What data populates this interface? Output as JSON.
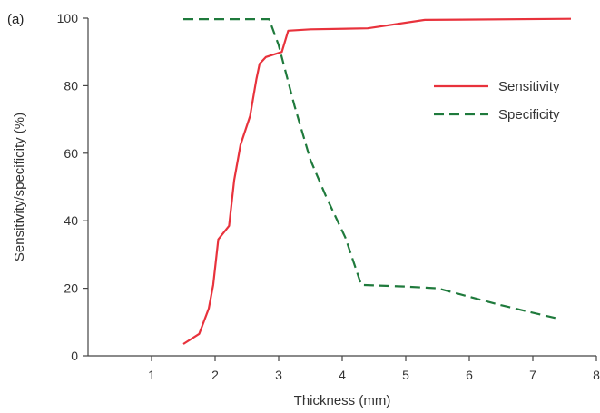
{
  "chart_data": {
    "type": "line",
    "panel_label": "(a)",
    "title": "",
    "xlabel": "Thickness (mm)",
    "ylabel": "Sensitivity/specificity (%)",
    "xlim": [
      0,
      8
    ],
    "ylim": [
      0,
      100
    ],
    "x_ticks": [
      1,
      2,
      3,
      4,
      5,
      6,
      7,
      8
    ],
    "y_ticks": [
      0,
      20,
      40,
      60,
      80,
      100
    ],
    "grid": false,
    "legend_position": "top-right",
    "series": [
      {
        "name": "Sensitivity",
        "color": "#e8323c",
        "line_style": "solid",
        "points": [
          [
            1.5,
            3.5
          ],
          [
            1.75,
            6.5
          ],
          [
            1.9,
            14
          ],
          [
            1.97,
            21
          ],
          [
            2.05,
            34.5
          ],
          [
            2.22,
            38.5
          ],
          [
            2.3,
            52
          ],
          [
            2.4,
            62.5
          ],
          [
            2.55,
            71
          ],
          [
            2.65,
            82
          ],
          [
            2.7,
            86.5
          ],
          [
            2.8,
            88.5
          ],
          [
            3.05,
            90
          ],
          [
            3.15,
            96.3
          ],
          [
            3.5,
            96.7
          ],
          [
            4.4,
            97
          ],
          [
            5.3,
            99.5
          ],
          [
            7.6,
            99.8
          ]
        ]
      },
      {
        "name": "Specificity",
        "color": "#1f7a3c",
        "line_style": "dashed",
        "points": [
          [
            1.5,
            99.7
          ],
          [
            2.85,
            99.7
          ],
          [
            3.0,
            92
          ],
          [
            3.25,
            74
          ],
          [
            3.5,
            58
          ],
          [
            3.75,
            47
          ],
          [
            4.05,
            35
          ],
          [
            4.3,
            21
          ],
          [
            5.0,
            20.5
          ],
          [
            5.5,
            20
          ],
          [
            6.5,
            15
          ],
          [
            7.4,
            11
          ]
        ]
      }
    ]
  }
}
